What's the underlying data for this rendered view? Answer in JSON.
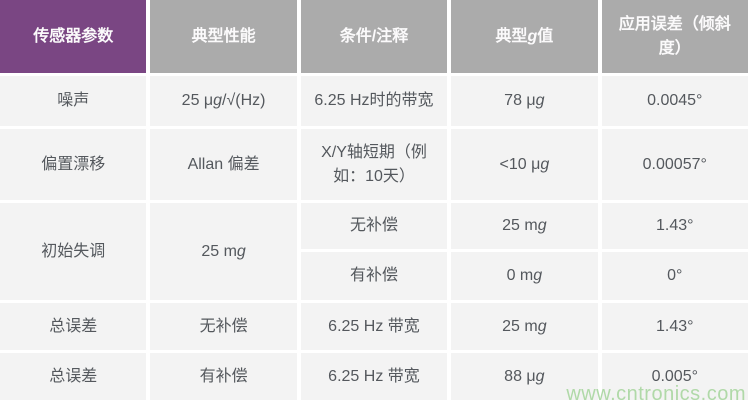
{
  "colors": {
    "header_purple": "#7a4683",
    "header_gray": "#ababab",
    "header_text": "#fbfafb",
    "cell_bg": "#f3f3f3",
    "body_text": "#54585d",
    "watermark_green": "#b0d9a8"
  },
  "watermark": "www.cntronics.com",
  "table": {
    "headers": [
      {
        "text": "传感器参数"
      },
      {
        "text": "典型性能"
      },
      {
        "text": "条件/注释"
      },
      {
        "pre": "典型",
        "g": "g",
        "post": "值"
      },
      {
        "text": "应用误差（倾斜度）"
      }
    ],
    "rows": [
      {
        "parameter": {
          "text": "噪声"
        },
        "performance": {
          "pre": "25 μ",
          "g": "g",
          "post": "/√(Hz)"
        },
        "condition": {
          "text": "6.25 Hz时的带宽"
        },
        "g_value": {
          "pre": "78 μ",
          "g": "g",
          "post": ""
        },
        "error": {
          "text": "0.0045°"
        }
      },
      {
        "parameter": {
          "text": "偏置漂移"
        },
        "performance": {
          "text": "Allan 偏差"
        },
        "condition": {
          "text": "X/Y轴短期（例如：10天）"
        },
        "g_value": {
          "pre": "<10 μ",
          "g": "g",
          "post": ""
        },
        "error": {
          "text": "0.00057°"
        }
      },
      {
        "parameter": {
          "text": "初始失调"
        },
        "performance": {
          "pre": "25 m",
          "g": "g",
          "post": ""
        },
        "condition": {
          "text": "无补偿"
        },
        "g_value": {
          "pre": "25 m",
          "g": "g",
          "post": ""
        },
        "error": {
          "text": "1.43°"
        }
      },
      {
        "condition": {
          "text": "有补偿"
        },
        "g_value": {
          "pre": "0 m",
          "g": "g",
          "post": ""
        },
        "error": {
          "text": "0°"
        }
      },
      {
        "parameter": {
          "text": "总误差"
        },
        "performance": {
          "text": "无补偿"
        },
        "condition": {
          "text": "6.25 Hz 带宽"
        },
        "g_value": {
          "pre": "25 m",
          "g": "g",
          "post": ""
        },
        "error": {
          "text": "1.43°"
        }
      },
      {
        "parameter": {
          "text": "总误差"
        },
        "performance": {
          "text": "有补偿"
        },
        "condition": {
          "text": "6.25 Hz 带宽"
        },
        "g_value": {
          "pre": "88 μ",
          "g": "g",
          "post": ""
        },
        "error": {
          "text": "0.005°"
        }
      }
    ]
  }
}
